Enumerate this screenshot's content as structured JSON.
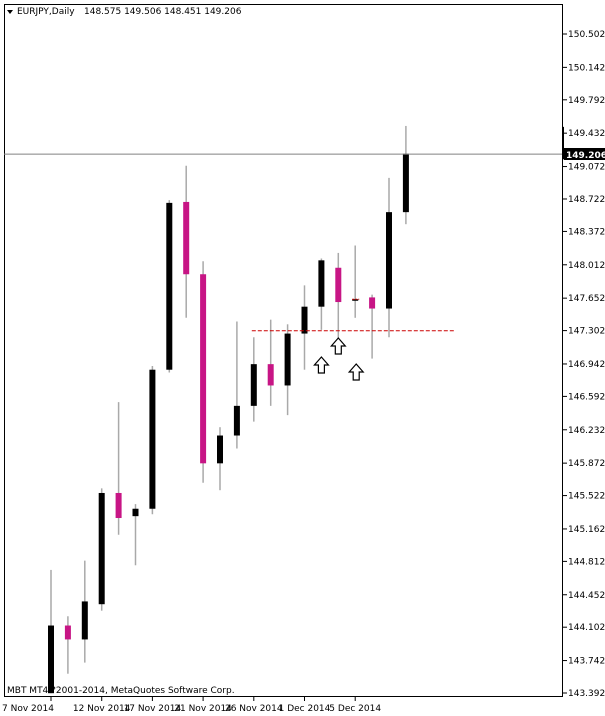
{
  "header": {
    "symbol_tf": "EURJPY,Daily",
    "ohlc": "148.575 149.506 148.451 149.206"
  },
  "footer": {
    "copyright": "MBT MT4 ?2001-2014, MetaQuotes Software Corp."
  },
  "current_price_label": "149.206",
  "colors": {
    "bull": "#000000",
    "bear": "#c71585",
    "wick": "#a9a9a9",
    "bid_line": "#808080",
    "level_line": "#cc0000",
    "background": "#ffffff"
  },
  "chart_data": {
    "type": "candlestick",
    "symbol": "EURJPY",
    "timeframe": "Daily",
    "y_ticks": [
      "150.502",
      "150.142",
      "149.792",
      "149.432",
      "149.072",
      "148.722",
      "148.372",
      "148.012",
      "147.652",
      "147.302",
      "146.942",
      "146.592",
      "146.232",
      "145.872",
      "145.522",
      "145.162",
      "144.812",
      "144.452",
      "144.102",
      "143.742",
      "143.392"
    ],
    "x_ticks": [
      "7 Nov 2014",
      "12 Nov 2014",
      "17 Nov 2014",
      "21 Nov 2014",
      "26 Nov 2014",
      "1 Dec 2014",
      "5 Dec 2014"
    ],
    "candles": [
      {
        "o": 143.39,
        "h": 144.72,
        "l": 143.39,
        "c": 144.12
      },
      {
        "o": 144.12,
        "h": 144.22,
        "l": 143.6,
        "c": 143.97
      },
      {
        "o": 143.97,
        "h": 144.82,
        "l": 143.72,
        "c": 144.38
      },
      {
        "o": 144.35,
        "h": 145.6,
        "l": 144.28,
        "c": 145.55
      },
      {
        "o": 145.55,
        "h": 146.53,
        "l": 145.1,
        "c": 145.28
      },
      {
        "o": 145.3,
        "h": 145.43,
        "l": 144.77,
        "c": 145.38
      },
      {
        "o": 145.38,
        "h": 146.92,
        "l": 145.32,
        "c": 146.88
      },
      {
        "o": 146.88,
        "h": 148.71,
        "l": 146.85,
        "c": 148.68
      },
      {
        "o": 148.69,
        "h": 149.08,
        "l": 147.44,
        "c": 147.91
      },
      {
        "o": 147.91,
        "h": 148.05,
        "l": 145.66,
        "c": 145.87
      },
      {
        "o": 145.87,
        "h": 146.26,
        "l": 145.58,
        "c": 146.17
      },
      {
        "o": 146.17,
        "h": 147.4,
        "l": 146.03,
        "c": 146.49
      },
      {
        "o": 146.49,
        "h": 147.23,
        "l": 146.32,
        "c": 146.94
      },
      {
        "o": 146.94,
        "h": 147.42,
        "l": 146.49,
        "c": 146.71
      },
      {
        "o": 146.71,
        "h": 147.37,
        "l": 146.39,
        "c": 147.27
      },
      {
        "o": 147.27,
        "h": 147.79,
        "l": 146.88,
        "c": 147.56
      },
      {
        "o": 147.56,
        "h": 148.08,
        "l": 147.31,
        "c": 148.06
      },
      {
        "o": 147.98,
        "h": 148.14,
        "l": 147.08,
        "c": 147.61
      },
      {
        "o": 147.64,
        "h": 148.22,
        "l": 147.44,
        "c": 147.64
      },
      {
        "o": 147.66,
        "h": 147.69,
        "l": 147.0,
        "c": 147.54
      },
      {
        "o": 147.54,
        "h": 148.95,
        "l": 147.23,
        "c": 148.58
      },
      {
        "o": 148.58,
        "h": 149.51,
        "l": 148.45,
        "c": 149.21
      }
    ],
    "horizontal_level": 147.3,
    "bid_price": 149.206
  }
}
